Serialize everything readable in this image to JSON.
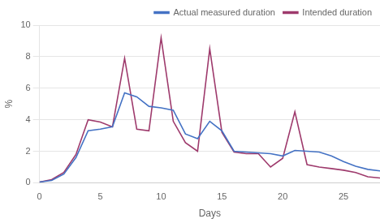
{
  "chart_data": {
    "type": "line",
    "xlabel": "Days",
    "ylabel": "%",
    "x": [
      0,
      1,
      2,
      3,
      4,
      5,
      6,
      7,
      8,
      9,
      10,
      11,
      12,
      13,
      14,
      15,
      16,
      17,
      18,
      19,
      20,
      21,
      22,
      23,
      24,
      25,
      26,
      27,
      28
    ],
    "series": [
      {
        "name": "Actual measured duration",
        "color": "#4472C4",
        "values": [
          0.05,
          0.15,
          0.55,
          1.6,
          3.3,
          3.4,
          3.55,
          5.7,
          5.45,
          4.85,
          4.75,
          4.6,
          3.1,
          2.8,
          3.9,
          3.3,
          2.0,
          1.95,
          1.9,
          1.85,
          1.7,
          2.05,
          2.0,
          1.95,
          1.7,
          1.35,
          1.05,
          0.85,
          0.75
        ]
      },
      {
        "name": "Intended duration",
        "color": "#9E3A6C",
        "values": [
          0.05,
          0.2,
          0.65,
          1.8,
          4.0,
          3.85,
          3.55,
          7.9,
          3.4,
          3.3,
          9.2,
          3.9,
          2.55,
          2.0,
          8.5,
          3.2,
          1.95,
          1.85,
          1.85,
          1.0,
          1.55,
          4.5,
          1.15,
          1.0,
          0.9,
          0.8,
          0.65,
          0.38,
          0.3
        ]
      }
    ],
    "xlim": [
      0,
      28
    ],
    "ylim": [
      0,
      10
    ],
    "xticks": [
      0,
      5,
      10,
      15,
      20,
      25
    ],
    "yticks": [
      0,
      2,
      4,
      6,
      8,
      10
    ],
    "grid": "y",
    "legend": "upper right"
  }
}
